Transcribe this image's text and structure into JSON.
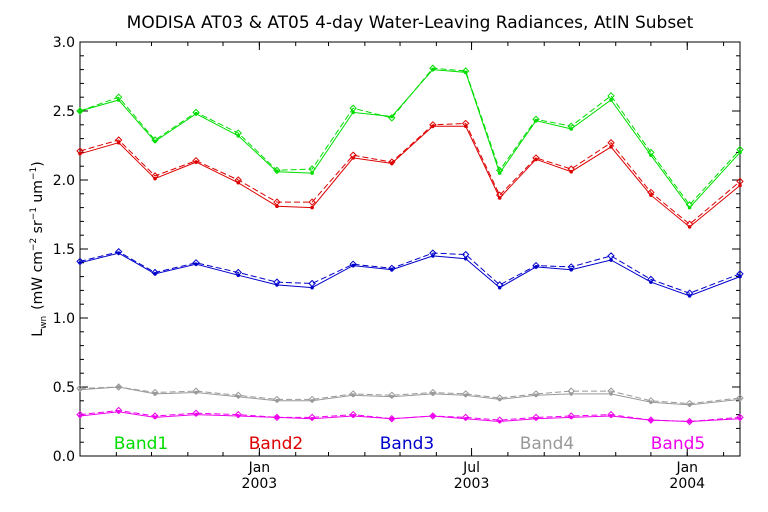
{
  "chart_data": {
    "type": "line",
    "title": "MODISA AT03 & AT05 4-day Water-Leaving Radiances, AtIN Subset",
    "ylabel": "L_wn (mW cm^-2 sr^-1 um^-1)",
    "ylabel_parts": {
      "main": "L",
      "sub": "wn",
      "units_open": "(mW cm",
      "exp1": "−2",
      "sr": " sr",
      "exp2": "−1",
      "um": " um",
      "exp3": "−1",
      "close": ")"
    },
    "ylim": [
      0.0,
      3.0
    ],
    "yticks": [
      "0.0",
      "0.5",
      "1.0",
      "1.5",
      "2.0",
      "2.5",
      "3.0"
    ],
    "xlim": [
      "2002-08-01",
      "2004-02-15"
    ],
    "xticks": [
      {
        "date": "2003-01-01",
        "line1": "Jan",
        "line2": "2003"
      },
      {
        "date": "2003-07-01",
        "line1": "Jul",
        "line2": "2003"
      },
      {
        "date": "2004-01-01",
        "line1": "Jan",
        "line2": "2004"
      }
    ],
    "grid": false,
    "legend_position": "bottom",
    "x": [
      "2002-08-01",
      "2002-09-03",
      "2002-10-04",
      "2002-11-08",
      "2002-12-14",
      "2003-01-16",
      "2003-02-15",
      "2003-03-22",
      "2003-04-24",
      "2003-05-29",
      "2003-06-26",
      "2003-07-25",
      "2003-08-25",
      "2003-09-24",
      "2003-10-28",
      "2003-12-01",
      "2004-01-03",
      "2004-02-15"
    ],
    "series": [
      {
        "name": "Band1",
        "color": "#00dd00",
        "style": "solid",
        "values": [
          2.5,
          2.58,
          2.28,
          2.48,
          2.32,
          2.06,
          2.05,
          2.49,
          2.46,
          2.8,
          2.78,
          2.05,
          2.43,
          2.37,
          2.58,
          2.18,
          1.8,
          2.2
        ]
      },
      {
        "name": "Band1",
        "color": "#00dd00",
        "style": "dashed",
        "values": [
          2.5,
          2.6,
          2.29,
          2.49,
          2.34,
          2.07,
          2.08,
          2.52,
          2.45,
          2.81,
          2.79,
          2.07,
          2.44,
          2.39,
          2.61,
          2.2,
          1.82,
          2.22
        ]
      },
      {
        "name": "Band2",
        "color": "#dd0000",
        "style": "solid",
        "values": [
          2.19,
          2.27,
          2.01,
          2.13,
          1.98,
          1.81,
          1.8,
          2.16,
          2.12,
          2.39,
          2.39,
          1.87,
          2.15,
          2.06,
          2.24,
          1.89,
          1.66,
          1.96
        ]
      },
      {
        "name": "Band2",
        "color": "#dd0000",
        "style": "dashed",
        "values": [
          2.21,
          2.29,
          2.03,
          2.14,
          2.0,
          1.84,
          1.84,
          2.18,
          2.13,
          2.4,
          2.41,
          1.89,
          2.16,
          2.08,
          2.27,
          1.91,
          1.68,
          1.99
        ]
      },
      {
        "name": "Band3",
        "color": "#0000cc",
        "style": "solid",
        "values": [
          1.4,
          1.47,
          1.32,
          1.39,
          1.31,
          1.24,
          1.22,
          1.38,
          1.35,
          1.45,
          1.43,
          1.22,
          1.37,
          1.35,
          1.42,
          1.26,
          1.16,
          1.3
        ]
      },
      {
        "name": "Band3",
        "color": "#0000cc",
        "style": "dashed",
        "values": [
          1.41,
          1.48,
          1.33,
          1.4,
          1.33,
          1.26,
          1.25,
          1.39,
          1.36,
          1.47,
          1.46,
          1.24,
          1.38,
          1.37,
          1.45,
          1.28,
          1.18,
          1.32
        ]
      },
      {
        "name": "Band4",
        "color": "#999999",
        "style": "solid",
        "values": [
          0.48,
          0.5,
          0.45,
          0.46,
          0.43,
          0.4,
          0.4,
          0.44,
          0.43,
          0.45,
          0.44,
          0.41,
          0.44,
          0.45,
          0.45,
          0.39,
          0.37,
          0.41
        ]
      },
      {
        "name": "Band4",
        "color": "#999999",
        "style": "dashed",
        "values": [
          0.49,
          0.5,
          0.46,
          0.47,
          0.44,
          0.41,
          0.41,
          0.45,
          0.44,
          0.46,
          0.45,
          0.42,
          0.45,
          0.47,
          0.47,
          0.4,
          0.38,
          0.42
        ]
      },
      {
        "name": "Band5",
        "color": "#ee00ee",
        "style": "solid",
        "values": [
          0.29,
          0.32,
          0.28,
          0.3,
          0.29,
          0.28,
          0.27,
          0.29,
          0.27,
          0.29,
          0.27,
          0.25,
          0.27,
          0.28,
          0.29,
          0.26,
          0.25,
          0.27
        ]
      },
      {
        "name": "Band5",
        "color": "#ee00ee",
        "style": "dashed",
        "values": [
          0.3,
          0.33,
          0.29,
          0.31,
          0.3,
          0.28,
          0.28,
          0.3,
          0.27,
          0.29,
          0.28,
          0.26,
          0.28,
          0.29,
          0.3,
          0.26,
          0.25,
          0.28
        ]
      }
    ],
    "legend": [
      {
        "label": "Band1",
        "color": "#00dd00"
      },
      {
        "label": "Band2",
        "color": "#dd0000"
      },
      {
        "label": "Band3",
        "color": "#0000cc"
      },
      {
        "label": "Band4",
        "color": "#999999"
      },
      {
        "label": "Band5",
        "color": "#ee00ee"
      }
    ]
  }
}
